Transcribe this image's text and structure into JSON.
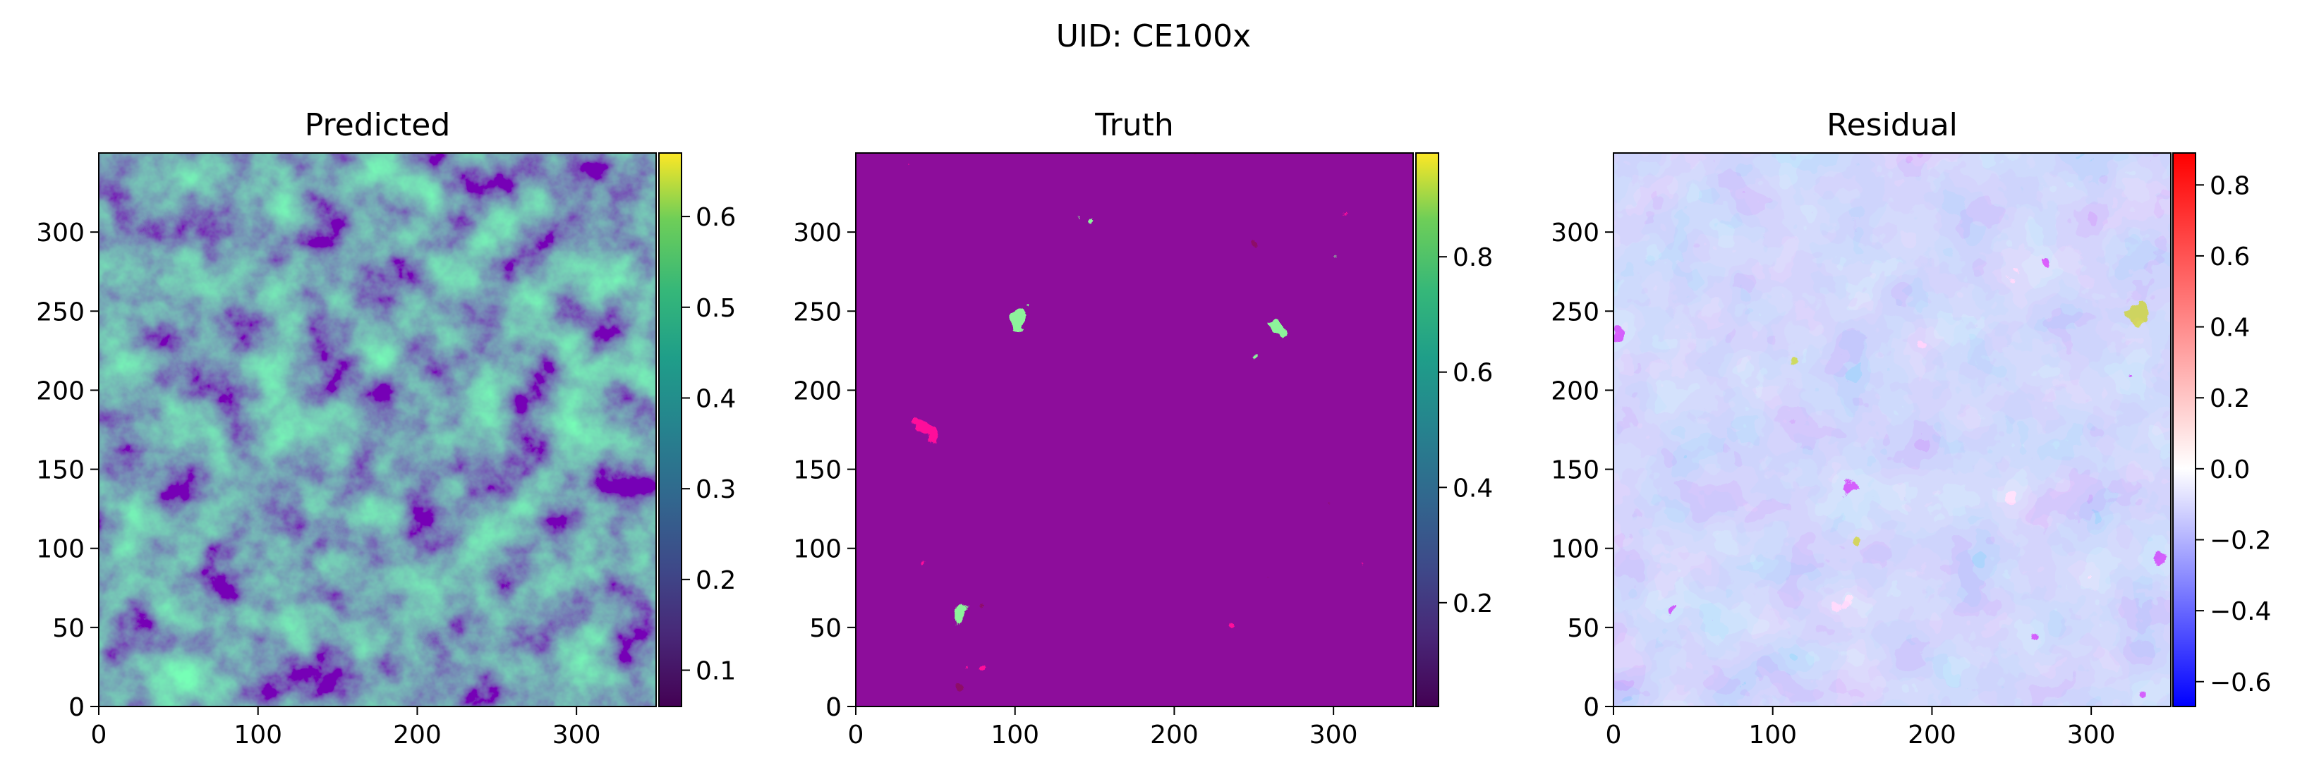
{
  "chart_data": {
    "suptitle": "UID: CE100x",
    "panels": [
      {
        "type": "heatmap",
        "title": "Predicted",
        "colormap": "viridis",
        "xlim": [
          0,
          350
        ],
        "ylim": [
          0,
          350
        ],
        "xticks": [
          0,
          100,
          200,
          300
        ],
        "yticks": [
          0,
          50,
          100,
          150,
          200,
          250,
          300
        ],
        "clim": [
          0.06,
          0.67
        ],
        "colorbar_ticks": [
          "0.1",
          "0.2",
          "0.3",
          "0.4",
          "0.5",
          "0.6"
        ],
        "colorbar_values": [
          0.1,
          0.2,
          0.3,
          0.4,
          0.5,
          0.6
        ]
      },
      {
        "type": "heatmap",
        "title": "Truth",
        "colormap": "viridis",
        "xlim": [
          0,
          350
        ],
        "ylim": [
          0,
          350
        ],
        "xticks": [
          0,
          100,
          200,
          300
        ],
        "yticks": [
          0,
          50,
          100,
          150,
          200,
          250,
          300
        ],
        "clim": [
          0.02,
          0.98
        ],
        "colorbar_ticks": [
          "0.2",
          "0.4",
          "0.6",
          "0.8"
        ],
        "colorbar_values": [
          0.2,
          0.4,
          0.6,
          0.8
        ]
      },
      {
        "type": "heatmap",
        "title": "Residual",
        "colormap": "bwr",
        "xlim": [
          0,
          350
        ],
        "ylim": [
          0,
          350
        ],
        "xticks": [
          0,
          100,
          200,
          300
        ],
        "yticks": [
          0,
          50,
          100,
          150,
          200,
          250,
          300
        ],
        "clim": [
          -0.67,
          0.89
        ],
        "colorbar_ticks": [
          "−0.6",
          "−0.4",
          "−0.2",
          "0.0",
          "0.2",
          "0.4",
          "0.6",
          "0.8"
        ],
        "colorbar_values": [
          -0.6,
          -0.4,
          -0.2,
          0.0,
          0.2,
          0.4,
          0.6,
          0.8
        ]
      }
    ]
  }
}
